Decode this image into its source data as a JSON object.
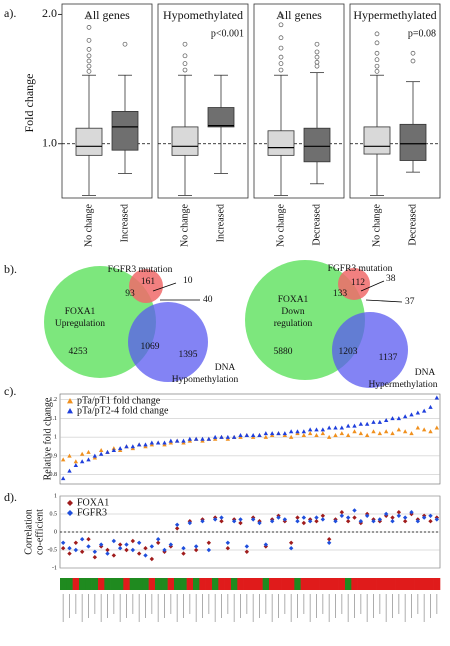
{
  "panel_labels": [
    "a).",
    "b).",
    "c).",
    "d)."
  ],
  "chart_data": [
    {
      "type": "box",
      "ylabel": "Fold change",
      "ylim": [
        0.58,
        2.05
      ],
      "yticks": [
        {
          "value": 1,
          "label": "1.0"
        },
        {
          "value": 2,
          "label": "2.0"
        }
      ],
      "reference_line": 1,
      "colors": [
        "#d9d9d9",
        "#6f6f6f"
      ],
      "panels": [
        {
          "title": "All genes",
          "categories": [
            "No change",
            "Increased"
          ],
          "boxes": [
            {
              "whislo": 0.6,
              "q1": 0.91,
              "med": 0.98,
              "q3": 1.12,
              "whishi": 1.53,
              "fliers": [
                1.56,
                1.6,
                1.64,
                1.68,
                1.73,
                1.8,
                1.9,
                1.98
              ]
            },
            {
              "whislo": 0.77,
              "q1": 0.95,
              "med": 1.13,
              "q3": 1.25,
              "whishi": 1.53,
              "fliers": [
                1.77
              ]
            }
          ]
        },
        {
          "title": "Hypomethylated",
          "annotation": "p<0.001",
          "categories": [
            "No change",
            "Increased"
          ],
          "boxes": [
            {
              "whislo": 0.6,
              "q1": 0.91,
              "med": 0.98,
              "q3": 1.13,
              "whishi": 1.53,
              "fliers": [
                1.57,
                1.62,
                1.68,
                1.77
              ]
            },
            {
              "whislo": 0.77,
              "q1": 1.13,
              "med": 1.14,
              "q3": 1.28,
              "whishi": 1.53,
              "fliers": []
            }
          ]
        },
        {
          "title": "All genes",
          "categories": [
            "No change",
            "Decreased"
          ],
          "boxes": [
            {
              "whislo": 0.6,
              "q1": 0.91,
              "med": 0.97,
              "q3": 1.1,
              "whishi": 1.53,
              "fliers": [
                1.57,
                1.62,
                1.67,
                1.74,
                1.82,
                1.92,
                1.99
              ]
            },
            {
              "whislo": 0.69,
              "q1": 0.86,
              "med": 0.98,
              "q3": 1.12,
              "whishi": 1.55,
              "fliers": [
                1.6,
                1.63,
                1.67,
                1.71,
                1.77
              ]
            }
          ]
        },
        {
          "title": "Hypermethylated",
          "annotation": "p=0.08",
          "categories": [
            "No change",
            "Decreased"
          ],
          "boxes": [
            {
              "whislo": 0.6,
              "q1": 0.92,
              "med": 0.98,
              "q3": 1.13,
              "whishi": 1.53,
              "fliers": [
                1.56,
                1.6,
                1.65,
                1.7,
                1.78,
                1.85
              ]
            },
            {
              "whislo": 0.78,
              "q1": 0.87,
              "med": 1.0,
              "q3": 1.15,
              "whishi": 1.48,
              "fliers": [
                1.64,
                1.7
              ]
            }
          ]
        }
      ]
    },
    {
      "type": "scatter",
      "ylabel": [
        "Relative fold change"
      ],
      "ylim": [
        0.75,
        1.23
      ],
      "yticks": [
        0.8,
        0.9,
        1,
        1.1,
        1.2
      ],
      "grid": true,
      "series": [
        {
          "name": "pTa/pT1 fold change",
          "color": "#f0901e",
          "marker": "triangle",
          "values": [
            0.88,
            0.9,
            0.87,
            0.91,
            0.92,
            0.89,
            0.93,
            0.92,
            0.94,
            0.93,
            0.95,
            0.94,
            0.96,
            0.95,
            0.96,
            0.97,
            0.96,
            0.97,
            0.98,
            0.97,
            0.98,
            0.99,
            0.98,
            0.99,
            0.99,
            1.0,
            0.99,
            1.0,
            1.0,
            1.01,
            1.0,
            1.01,
            1.0,
            1.01,
            1.02,
            1.01,
            1.0,
            1.02,
            1.01,
            1.02,
            1.01,
            1.02,
            1.0,
            1.01,
            1.02,
            1.01,
            1.03,
            1.02,
            1.01,
            1.03,
            1.02,
            1.03,
            1.02,
            1.04,
            1.03,
            1.02,
            1.05,
            1.04,
            1.03,
            1.05
          ]
        },
        {
          "name": "pTa/pT2-4 fold change",
          "color": "#1f3fdc",
          "marker": "triangle",
          "values": [
            0.78,
            0.82,
            0.85,
            0.87,
            0.88,
            0.9,
            0.91,
            0.92,
            0.93,
            0.94,
            0.95,
            0.95,
            0.96,
            0.96,
            0.97,
            0.97,
            0.97,
            0.98,
            0.98,
            0.98,
            0.99,
            0.99,
            0.99,
            0.99,
            1.0,
            1.0,
            1.0,
            1.0,
            1.01,
            1.01,
            1.01,
            1.01,
            1.02,
            1.02,
            1.02,
            1.02,
            1.03,
            1.03,
            1.03,
            1.04,
            1.04,
            1.04,
            1.05,
            1.05,
            1.05,
            1.06,
            1.06,
            1.07,
            1.07,
            1.08,
            1.08,
            1.09,
            1.1,
            1.1,
            1.11,
            1.12,
            1.13,
            1.14,
            1.16,
            1.21
          ]
        }
      ]
    },
    {
      "type": "scatter",
      "ylabel": [
        "Correlation",
        "co-efficient"
      ],
      "ylim": [
        -1,
        1
      ],
      "yticks": [
        -1,
        -0.5,
        0,
        0.5,
        1
      ],
      "grid": true,
      "reference_line": 0,
      "series": [
        {
          "name": "FOXA1",
          "color": "#a01c1c",
          "marker": "diamond",
          "values": [
            -0.45,
            -0.6,
            -0.3,
            -0.55,
            -0.2,
            -0.7,
            -0.4,
            -0.5,
            -0.65,
            -0.35,
            -0.5,
            -0.25,
            -0.6,
            -0.45,
            -0.75,
            -0.3,
            -0.55,
            -0.4,
            0.1,
            -0.6,
            0.3,
            -0.5,
            0.35,
            -0.3,
            0.4,
            0.3,
            -0.45,
            0.35,
            0.25,
            -0.55,
            0.4,
            0.3,
            -0.4,
            0.35,
            0.45,
            0.3,
            -0.3,
            0.4,
            0.25,
            0.35,
            0.3,
            0.45,
            -0.2,
            0.35,
            0.55,
            0.3,
            0.4,
            0.25,
            0.5,
            0.35,
            0.3,
            0.45,
            0.4,
            0.55,
            0.3,
            0.5,
            0.35,
            0.45,
            0.3,
            0.4
          ]
        },
        {
          "name": "FGFR3",
          "color": "#1f4fdc",
          "marker": "diamond",
          "values": [
            -0.3,
            -0.45,
            -0.5,
            -0.2,
            -0.4,
            -0.55,
            -0.35,
            -0.6,
            -0.25,
            -0.45,
            -0.35,
            -0.5,
            -0.3,
            -0.65,
            -0.4,
            -0.2,
            -0.5,
            -0.35,
            0.2,
            -0.45,
            0.25,
            -0.4,
            0.3,
            -0.5,
            0.35,
            0.4,
            -0.3,
            0.3,
            0.35,
            -0.4,
            0.35,
            0.25,
            -0.35,
            0.3,
            0.4,
            0.35,
            -0.45,
            0.3,
            0.4,
            0.3,
            0.4,
            0.35,
            -0.3,
            0.3,
            0.45,
            0.4,
            0.6,
            0.3,
            0.45,
            0.3,
            0.35,
            0.5,
            0.3,
            0.45,
            0.4,
            0.55,
            0.3,
            0.4,
            0.45,
            0.35
          ]
        }
      ],
      "strip_palette": [
        "#1f8a1f",
        "#e01b1b"
      ],
      "strip": [
        0,
        0,
        1,
        0,
        0,
        0,
        1,
        0,
        0,
        0,
        1,
        0,
        0,
        0,
        1,
        0,
        0,
        1,
        0,
        0,
        1,
        0,
        1,
        1,
        0,
        1,
        1,
        0,
        1,
        1,
        1,
        1,
        0,
        1,
        1,
        1,
        1,
        0,
        1,
        1,
        1,
        1,
        1,
        1,
        1,
        0,
        1,
        1,
        1,
        1,
        1,
        1,
        1,
        1,
        1,
        1,
        1,
        1,
        1,
        1
      ]
    }
  ],
  "venns": [
    {
      "mutation": "FGFR3 mutation",
      "left": [
        "FOXA1",
        "Upregulation"
      ],
      "right": [
        "DNA",
        "Hypomethylation"
      ],
      "counts": {
        "left_only": "4253",
        "left_right": "1069",
        "right_only": "1395",
        "mutation_only": "161",
        "mutation_left": "93",
        "mutation_all": "10",
        "mutation_right": "40"
      }
    },
    {
      "mutation": "FGFR3 mutation",
      "left": [
        "FOXA1",
        "Down",
        "regulation"
      ],
      "right": [
        "DNA",
        "Hypermethylation"
      ],
      "counts": {
        "left_only": "5880",
        "left_right": "1203",
        "right_only": "1137",
        "mutation_only": "112",
        "mutation_left": "133",
        "mutation_all": "38",
        "mutation_right": "37"
      }
    }
  ]
}
